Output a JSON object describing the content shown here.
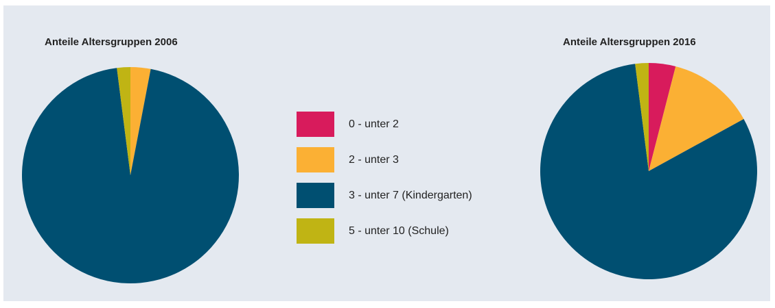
{
  "chart_data": [
    {
      "type": "pie",
      "title": "Anteile Altersgruppen 2006",
      "values": [
        0,
        3,
        95,
        2
      ]
    },
    {
      "type": "pie",
      "title": "Anteile Altersgruppen 2016",
      "values": [
        4,
        13,
        81,
        2
      ]
    }
  ],
  "legend": {
    "labels": [
      "0 - unter 2",
      "2 - unter 3",
      "3 - unter 7 (Kindergarten)",
      "5 - unter 10 (Schule)"
    ],
    "colors": [
      "#d81b5c",
      "#fbb034",
      "#004f71",
      "#c0b414"
    ]
  }
}
